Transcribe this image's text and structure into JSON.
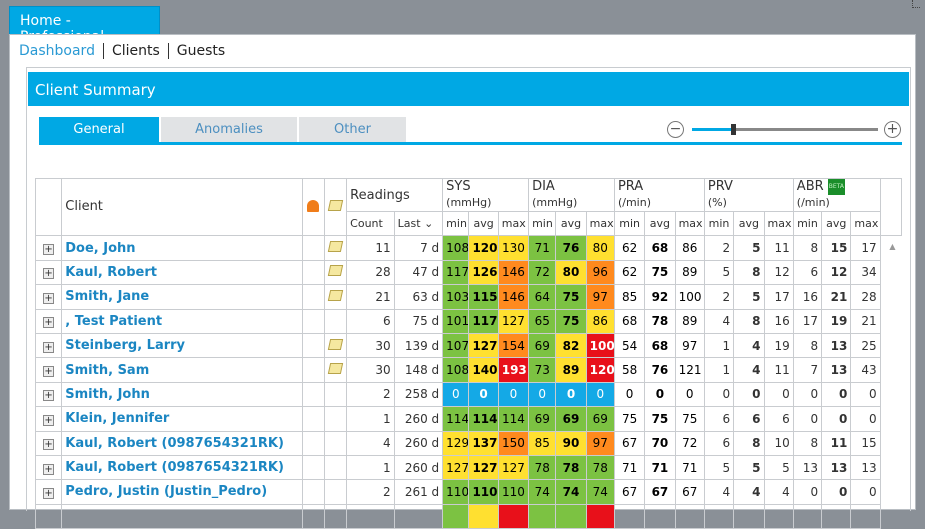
{
  "window": {
    "title": "Home - Professional"
  },
  "nav": {
    "items": [
      "Dashboard",
      "Clients",
      "Guests"
    ]
  },
  "panel": {
    "title": "Client Summary"
  },
  "tabs": [
    "General",
    "Anomalies",
    "Other"
  ],
  "zoom": {
    "level": 0.22
  },
  "table": {
    "headers": {
      "client": "Client",
      "readings": "Readings",
      "sys": "SYS",
      "sys_unit": "(mmHg)",
      "dia": "DIA",
      "dia_unit": "(mmHg)",
      "pra": "PRA",
      "pra_unit": "(/min)",
      "prv": "PRV",
      "prv_unit": "(%)",
      "abr": "ABR",
      "abr_unit": "(/min)",
      "abr_badge": "BETA",
      "count": "Count",
      "last": "Last",
      "min": "min",
      "avg": "avg",
      "max": "max"
    },
    "colors": {
      "green": "#7cc242",
      "yellow": "#ffe030",
      "orange": "#ff8a1e",
      "red": "#e8101a",
      "blue": "#14a9e6"
    },
    "rows": [
      {
        "name": "Doe, John",
        "note": true,
        "count": "11",
        "last": "7 d",
        "sys": [
          "108",
          "120",
          "130"
        ],
        "sysc": [
          "green",
          "yellow",
          "yellow"
        ],
        "dia": [
          "71",
          "76",
          "80"
        ],
        "diac": [
          "green",
          "green",
          "yellow"
        ],
        "pra": [
          "62",
          "68",
          "86"
        ],
        "prv": [
          "2",
          "5",
          "11"
        ],
        "abr": [
          "8",
          "15",
          "17"
        ]
      },
      {
        "name": "Kaul, Robert",
        "note": true,
        "count": "28",
        "last": "47 d",
        "sys": [
          "117",
          "126",
          "146"
        ],
        "sysc": [
          "green",
          "yellow",
          "orange"
        ],
        "dia": [
          "72",
          "80",
          "96"
        ],
        "diac": [
          "green",
          "yellow",
          "orange"
        ],
        "pra": [
          "62",
          "75",
          "89"
        ],
        "prv": [
          "5",
          "8",
          "12"
        ],
        "abr": [
          "6",
          "12",
          "34"
        ]
      },
      {
        "name": "Smith, Jane",
        "note": true,
        "count": "21",
        "last": "63 d",
        "sys": [
          "103",
          "115",
          "146"
        ],
        "sysc": [
          "green",
          "green",
          "orange"
        ],
        "dia": [
          "64",
          "75",
          "97"
        ],
        "diac": [
          "green",
          "green",
          "orange"
        ],
        "pra": [
          "85",
          "92",
          "100"
        ],
        "prv": [
          "2",
          "5",
          "17"
        ],
        "abr": [
          "16",
          "21",
          "28"
        ]
      },
      {
        "name": ", Test Patient",
        "note": false,
        "count": "6",
        "last": "75 d",
        "sys": [
          "101",
          "117",
          "127"
        ],
        "sysc": [
          "green",
          "green",
          "yellow"
        ],
        "dia": [
          "65",
          "75",
          "86"
        ],
        "diac": [
          "green",
          "green",
          "yellow"
        ],
        "pra": [
          "68",
          "78",
          "89"
        ],
        "prv": [
          "4",
          "8",
          "16"
        ],
        "abr": [
          "17",
          "19",
          "21"
        ]
      },
      {
        "name": "Steinberg, Larry",
        "note": true,
        "count": "30",
        "last": "139 d",
        "sys": [
          "107",
          "127",
          "154"
        ],
        "sysc": [
          "green",
          "yellow",
          "orange"
        ],
        "dia": [
          "69",
          "82",
          "100"
        ],
        "diac": [
          "green",
          "yellow",
          "red"
        ],
        "pra": [
          "54",
          "68",
          "97"
        ],
        "prv": [
          "1",
          "4",
          "19"
        ],
        "abr": [
          "8",
          "13",
          "25"
        ]
      },
      {
        "name": "Smith, Sam",
        "note": true,
        "count": "30",
        "last": "148 d",
        "sys": [
          "108",
          "140",
          "193"
        ],
        "sysc": [
          "green",
          "yellow",
          "red"
        ],
        "dia": [
          "73",
          "89",
          "120"
        ],
        "diac": [
          "green",
          "yellow",
          "red"
        ],
        "pra": [
          "58",
          "76",
          "121"
        ],
        "prv": [
          "1",
          "4",
          "11"
        ],
        "abr": [
          "7",
          "13",
          "43"
        ]
      },
      {
        "name": "Smith, John",
        "note": false,
        "count": "2",
        "last": "258 d",
        "sys": [
          "0",
          "0",
          "0"
        ],
        "sysc": [
          "blue",
          "blue",
          "blue"
        ],
        "dia": [
          "0",
          "0",
          "0"
        ],
        "diac": [
          "blue",
          "blue",
          "blue"
        ],
        "pra": [
          "0",
          "0",
          "0"
        ],
        "prv": [
          "0",
          "0",
          "0"
        ],
        "abr": [
          "0",
          "0",
          "0"
        ]
      },
      {
        "name": "Klein, Jennifer",
        "note": false,
        "count": "1",
        "last": "260 d",
        "sys": [
          "114",
          "114",
          "114"
        ],
        "sysc": [
          "green",
          "green",
          "green"
        ],
        "dia": [
          "69",
          "69",
          "69"
        ],
        "diac": [
          "green",
          "green",
          "green"
        ],
        "pra": [
          "75",
          "75",
          "75"
        ],
        "prv": [
          "6",
          "6",
          "6"
        ],
        "abr": [
          "0",
          "0",
          "0"
        ]
      },
      {
        "name": "Kaul, Robert (0987654321RK)",
        "note": false,
        "count": "4",
        "last": "260 d",
        "sys": [
          "129",
          "137",
          "150"
        ],
        "sysc": [
          "yellow",
          "yellow",
          "orange"
        ],
        "dia": [
          "85",
          "90",
          "97"
        ],
        "diac": [
          "yellow",
          "yellow",
          "orange"
        ],
        "pra": [
          "67",
          "70",
          "72"
        ],
        "prv": [
          "6",
          "8",
          "10"
        ],
        "abr": [
          "8",
          "11",
          "15"
        ]
      },
      {
        "name": "Kaul, Robert (0987654321RK)",
        "note": false,
        "count": "1",
        "last": "260 d",
        "sys": [
          "127",
          "127",
          "127"
        ],
        "sysc": [
          "yellow",
          "yellow",
          "yellow"
        ],
        "dia": [
          "78",
          "78",
          "78"
        ],
        "diac": [
          "green",
          "green",
          "green"
        ],
        "pra": [
          "71",
          "71",
          "71"
        ],
        "prv": [
          "5",
          "5",
          "5"
        ],
        "abr": [
          "13",
          "13",
          "13"
        ]
      },
      {
        "name": "Pedro, Justin (Justin_Pedro)",
        "note": false,
        "count": "2",
        "last": "261 d",
        "sys": [
          "110",
          "110",
          "110"
        ],
        "sysc": [
          "green",
          "green",
          "green"
        ],
        "dia": [
          "74",
          "74",
          "74"
        ],
        "diac": [
          "green",
          "green",
          "green"
        ],
        "pra": [
          "67",
          "67",
          "67"
        ],
        "prv": [
          "4",
          "4",
          "4"
        ],
        "abr": [
          "0",
          "0",
          "0"
        ]
      },
      {
        "name": "",
        "note": false,
        "count": "",
        "last": "",
        "sys": [
          "",
          "",
          ""
        ],
        "sysc": [
          "green",
          "yellow",
          "red"
        ],
        "dia": [
          "",
          "",
          ""
        ],
        "diac": [
          "green",
          "green",
          "red"
        ],
        "pra": [
          "",
          "",
          ""
        ],
        "prv": [
          "",
          "",
          ""
        ],
        "abr": [
          "",
          "",
          ""
        ]
      }
    ]
  }
}
